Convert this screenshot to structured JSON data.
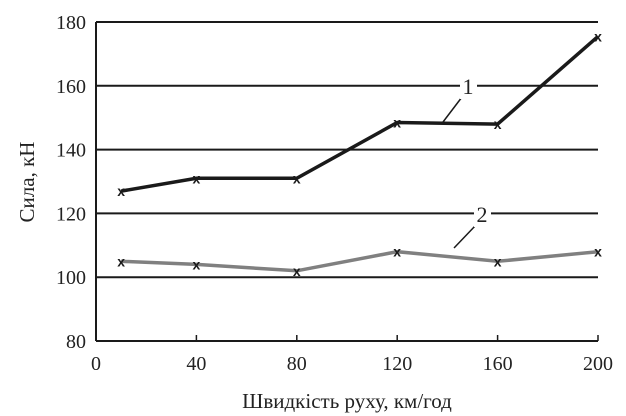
{
  "chart_data": {
    "type": "line",
    "xlabel": "Швидкість руху, км/год",
    "ylabel": "Сила, кН",
    "xlim": [
      0,
      200
    ],
    "ylim": [
      80,
      180
    ],
    "x_ticks": [
      "0",
      "40",
      "80",
      "120",
      "160",
      "200"
    ],
    "y_ticks": [
      "80",
      "100",
      "120",
      "140",
      "160",
      "180"
    ],
    "grid": "horizontal",
    "series": [
      {
        "name": "1",
        "color": "#1a1a1a",
        "marker": "x",
        "x": [
          10,
          40,
          80,
          120,
          160,
          200
        ],
        "values": [
          127,
          131,
          131,
          148.5,
          148,
          175.5
        ]
      },
      {
        "name": "2",
        "color": "#808080",
        "marker": "x",
        "x": [
          10,
          40,
          80,
          120,
          160,
          200
        ],
        "values": [
          105,
          104,
          102,
          108,
          105,
          108
        ]
      }
    ],
    "marker_glyph": "x"
  }
}
